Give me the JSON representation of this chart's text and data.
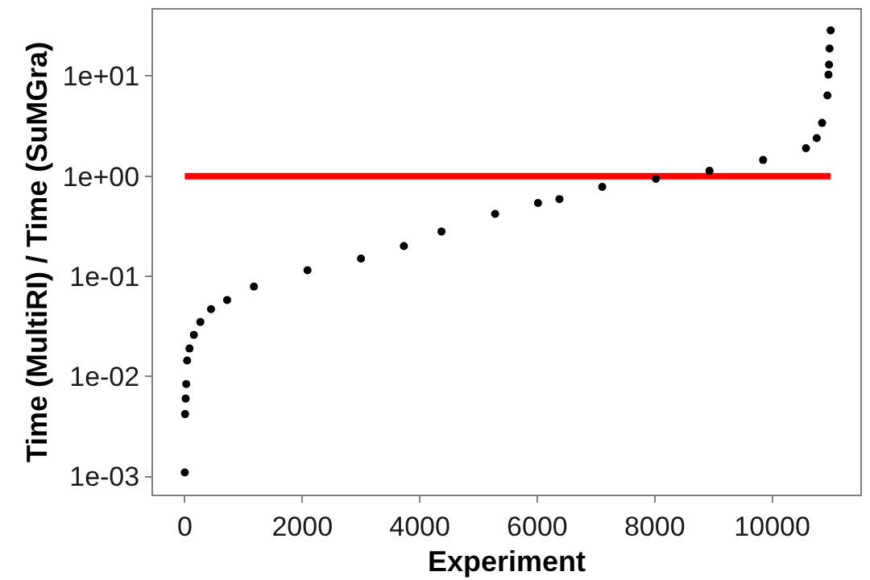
{
  "chart_data": {
    "type": "scatter",
    "xlabel": "Experiment",
    "ylabel": "Time (MultiRI) / Time (SuMGra)",
    "x": [
      0,
      5,
      15,
      25,
      40,
      80,
      155,
      265,
      447,
      721,
      1177,
      2089,
      3000,
      3730,
      4370,
      5283,
      6013,
      6378,
      7107,
      8020,
      8932,
      9845,
      10575,
      10757,
      10849,
      10940,
      10958,
      10967,
      10976,
      10995
    ],
    "series": [
      {
        "color": "#000000",
        "values": [
          0.0011,
          0.0042,
          0.006,
          0.0084,
          0.0144,
          0.019,
          0.026,
          0.035,
          0.047,
          0.058,
          0.079,
          0.115,
          0.15,
          0.2,
          0.28,
          0.42,
          0.54,
          0.59,
          0.78,
          0.94,
          1.13,
          1.45,
          1.9,
          2.4,
          3.4,
          6.4,
          10.3,
          13,
          18.8,
          28.6
        ]
      }
    ],
    "log": "y",
    "marker": "circle",
    "xlim": [
      -540,
      11500
    ],
    "xticks": [
      0,
      2000,
      4000,
      6000,
      8000,
      10000
    ],
    "ylim": [
      0.00066,
      46
    ],
    "yticks": [
      {
        "value": 0.001,
        "label": "1e-03"
      },
      {
        "value": 0.01,
        "label": "1e-02"
      },
      {
        "value": 0.1,
        "label": "1e-01"
      },
      {
        "value": 1,
        "label": "1e+00"
      },
      {
        "value": 10,
        "label": "1e+01"
      }
    ],
    "ref_lines": [
      {
        "axis": "y",
        "value": 1,
        "color": "#ff0000",
        "line_style": "solid"
      }
    ]
  }
}
